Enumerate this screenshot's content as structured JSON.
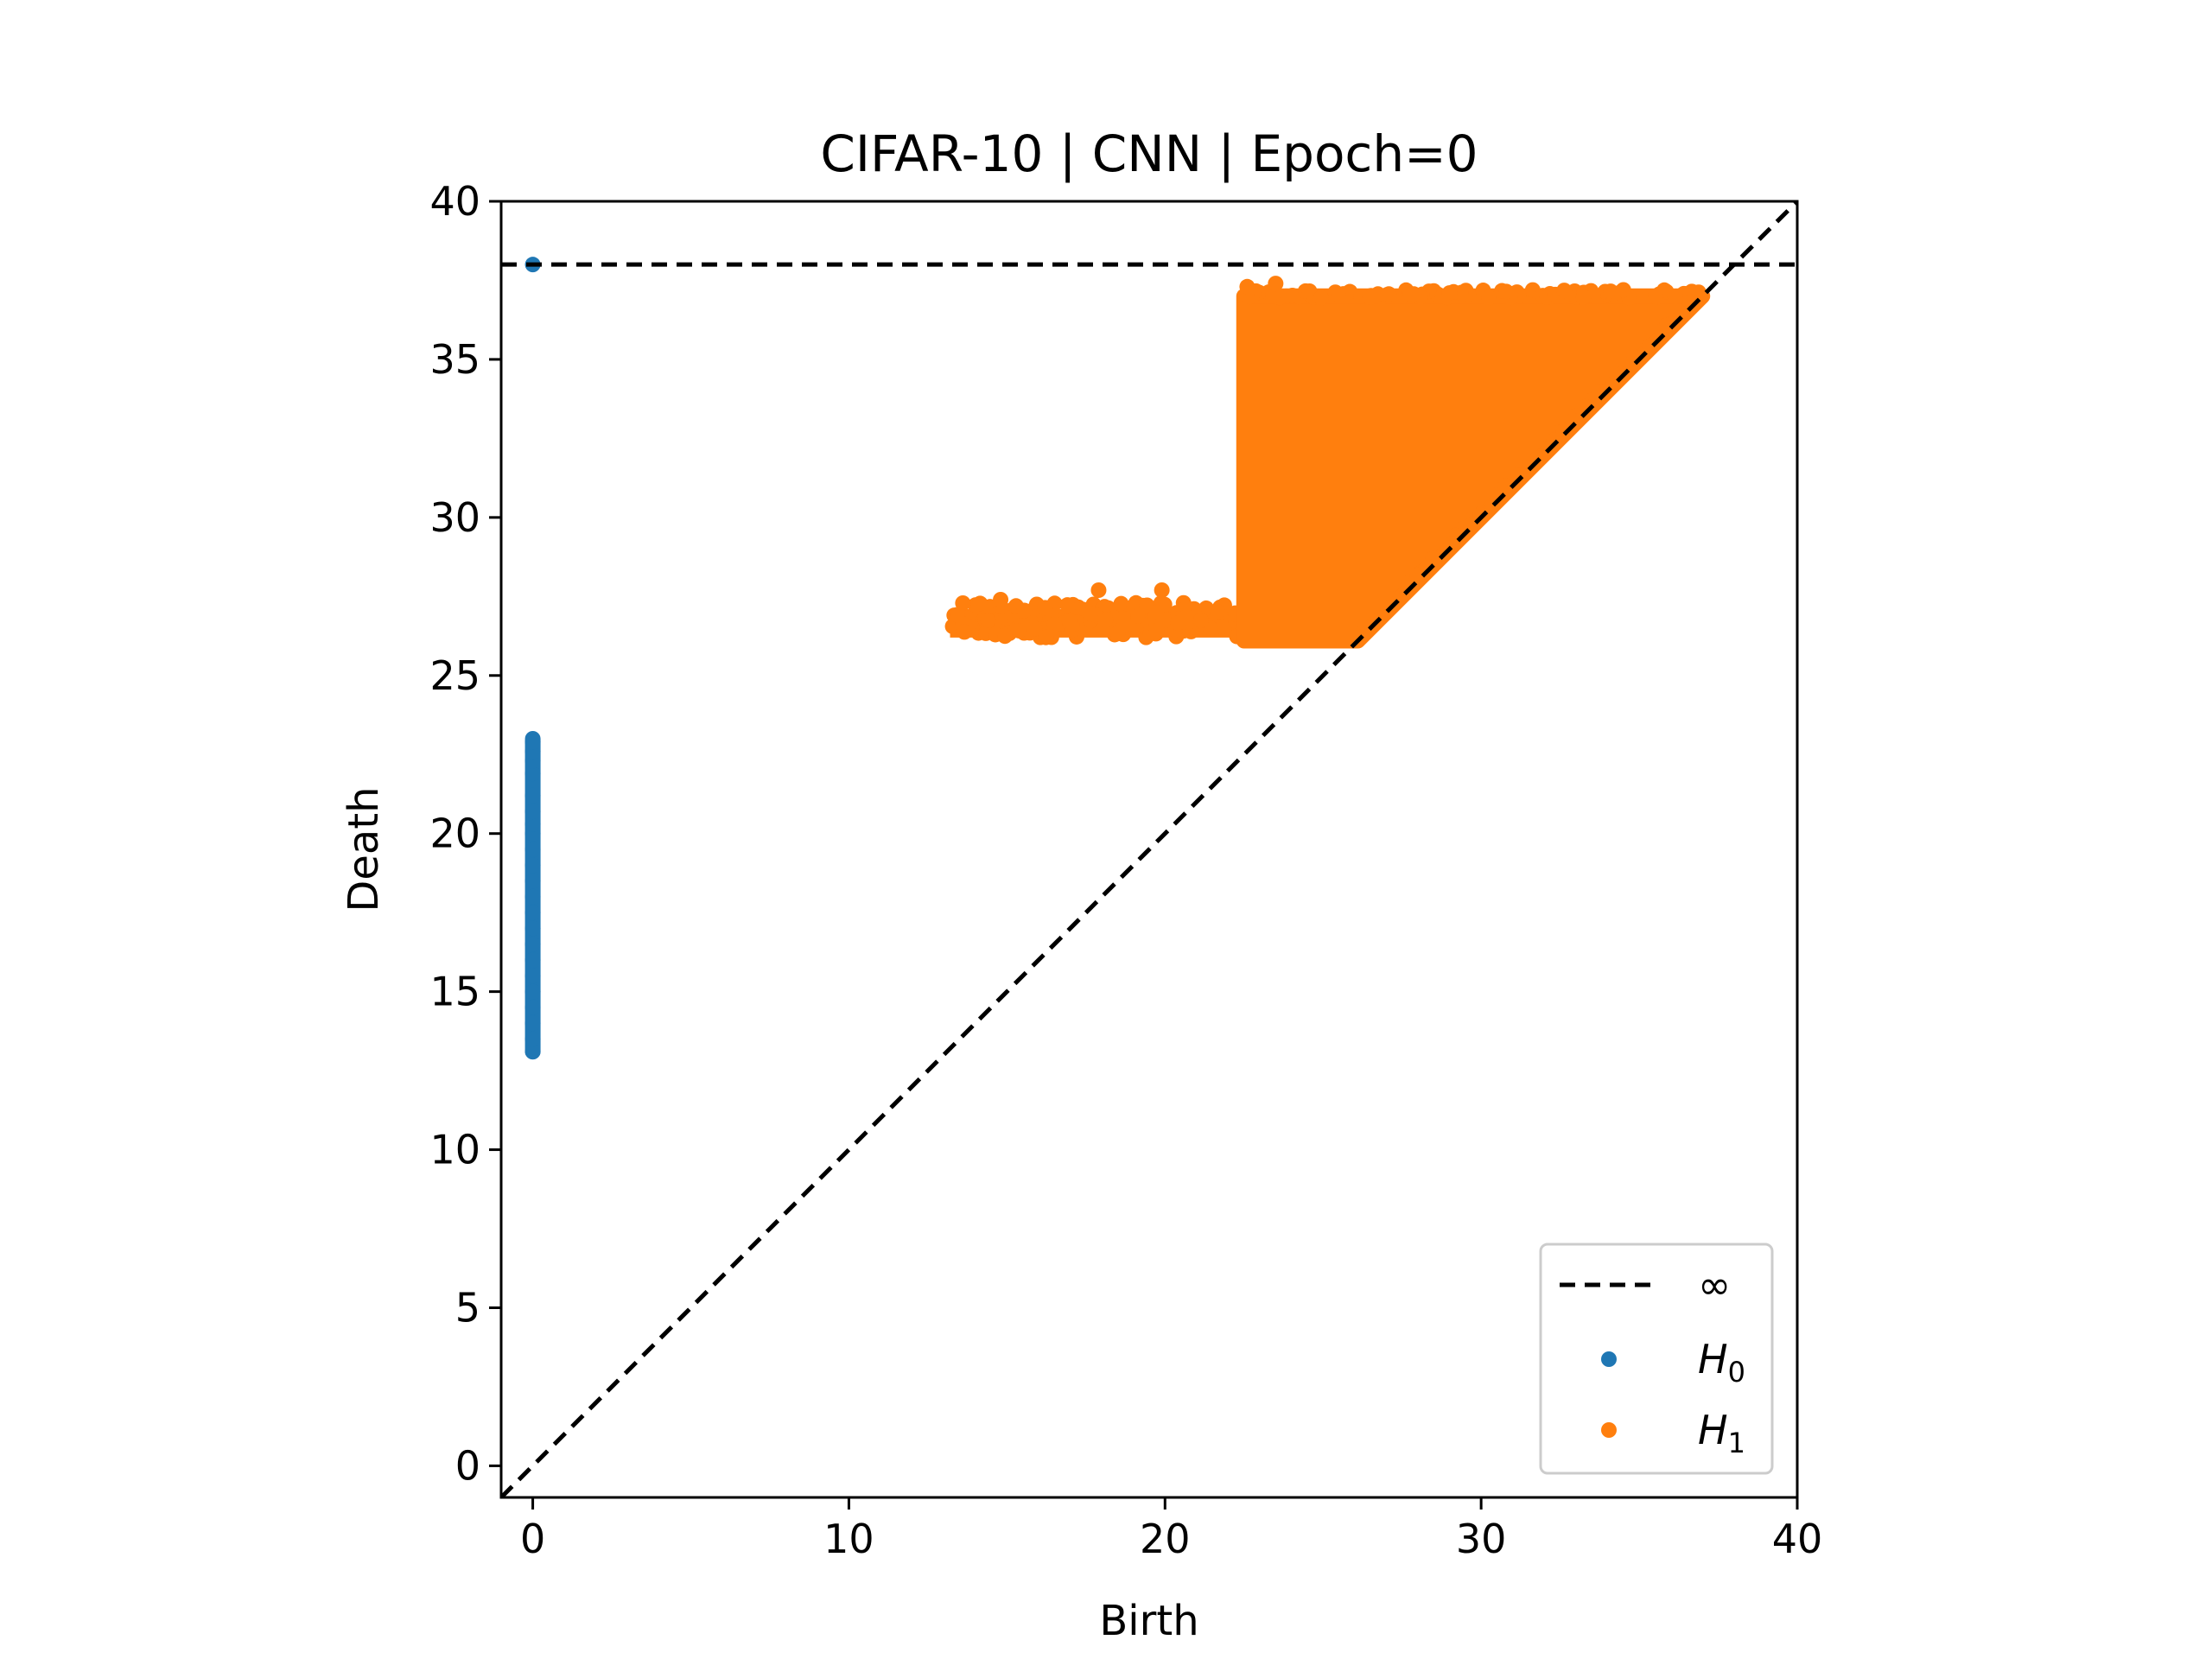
{
  "chart_data": {
    "type": "scatter",
    "title": "CIFAR-10 | CNN | Epoch=0",
    "xlabel": "Birth",
    "ylabel": "Death",
    "xlim": [
      -1,
      40
    ],
    "ylim": [
      -1,
      40
    ],
    "xticks": [
      "0",
      "10",
      "20",
      "30",
      "40"
    ],
    "yticks": [
      "0",
      "5",
      "10",
      "15",
      "20",
      "25",
      "30",
      "35",
      "40"
    ],
    "grid": false,
    "legend_position": "lower-right",
    "infinity_level": 38,
    "infinity_label": "∞",
    "diagonal": true,
    "series": [
      {
        "name": "H0",
        "label_base": "H",
        "label_sub": "0",
        "color": "#1f77b4",
        "infinite_points": [
          [
            0,
            38
          ]
        ],
        "death_range": [
          13.1,
          23.0
        ],
        "points": [
          [
            0,
            13.1
          ],
          [
            0,
            13.5
          ],
          [
            0,
            14.0
          ],
          [
            0,
            14.5
          ],
          [
            0,
            15.0
          ],
          [
            0,
            15.5
          ],
          [
            0,
            16.0
          ],
          [
            0,
            16.5
          ],
          [
            0,
            17.0
          ],
          [
            0,
            17.5
          ],
          [
            0,
            18.0
          ],
          [
            0,
            18.5
          ],
          [
            0,
            19.0
          ],
          [
            0,
            19.5
          ],
          [
            0,
            20.0
          ],
          [
            0,
            20.3
          ],
          [
            0,
            20.7
          ],
          [
            0,
            21.2
          ],
          [
            0,
            21.9
          ],
          [
            0,
            22.3
          ],
          [
            0,
            22.6
          ],
          [
            0,
            22.9
          ]
        ]
      },
      {
        "name": "H1",
        "label_base": "H",
        "label_sub": "1",
        "color": "#ff7f0e",
        "regions": [
          {
            "birth_range": [
              13.2,
              22.5
            ],
            "death_range": [
              26.2,
              27.1
            ]
          },
          {
            "birth_range": [
              22.5,
              37.0
            ],
            "death_range": [
              26.1,
              37.0
            ],
            "bounded_by_diagonal": true
          }
        ],
        "outliers": [
          [
            17.9,
            27.7
          ],
          [
            19.9,
            27.7
          ],
          [
            14.8,
            27.4
          ],
          [
            22.6,
            37.3
          ],
          [
            23.5,
            37.4
          ],
          [
            34.5,
            37.2
          ],
          [
            29.0,
            37.1
          ]
        ]
      }
    ]
  }
}
